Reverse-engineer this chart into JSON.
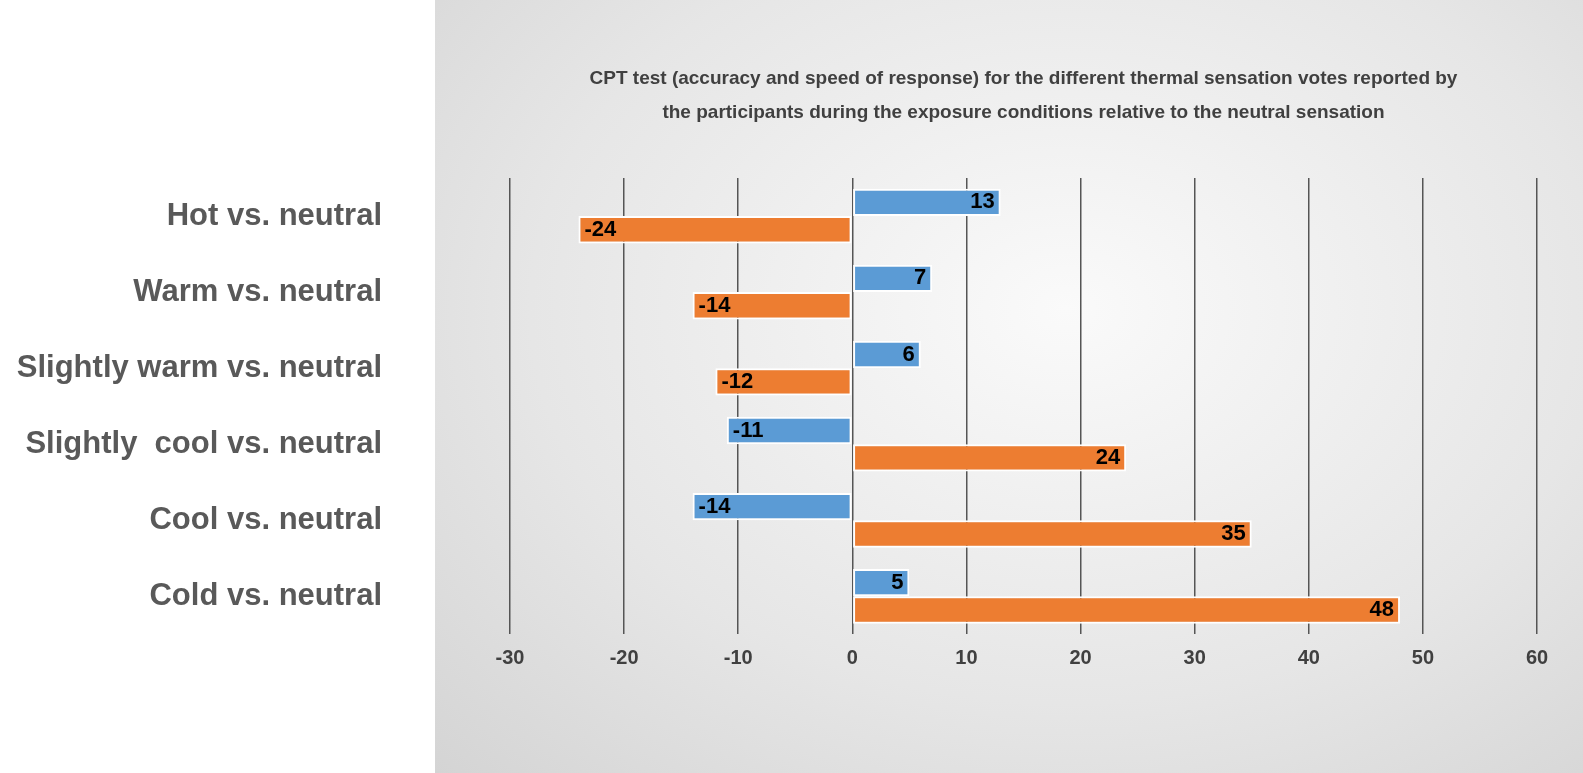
{
  "chart_data": {
    "type": "bar",
    "orientation": "horizontal",
    "title": "CPT test (accuracy and speed of response) for the different thermal sensation votes reported by the participants during the exposure conditions relative to the neutral sensation",
    "categories": [
      "Hot vs. neutral",
      "Warm vs. neutral",
      "Slightly warm vs. neutral",
      "Slightly  cool vs. neutral",
      "Cool vs. neutral",
      "Cold vs. neutral"
    ],
    "series": [
      {
        "color": "#5b9bd5",
        "values": [
          13,
          7,
          6,
          -11,
          -14,
          5
        ]
      },
      {
        "color": "#ed7d31",
        "values": [
          -24,
          -14,
          -12,
          24,
          35,
          48
        ]
      }
    ],
    "xlim": [
      -30,
      60
    ],
    "xticks": [
      -30,
      -20,
      -10,
      0,
      10,
      20,
      30,
      40,
      50,
      60
    ],
    "grid": "x",
    "legend": false,
    "data_labels": true
  }
}
